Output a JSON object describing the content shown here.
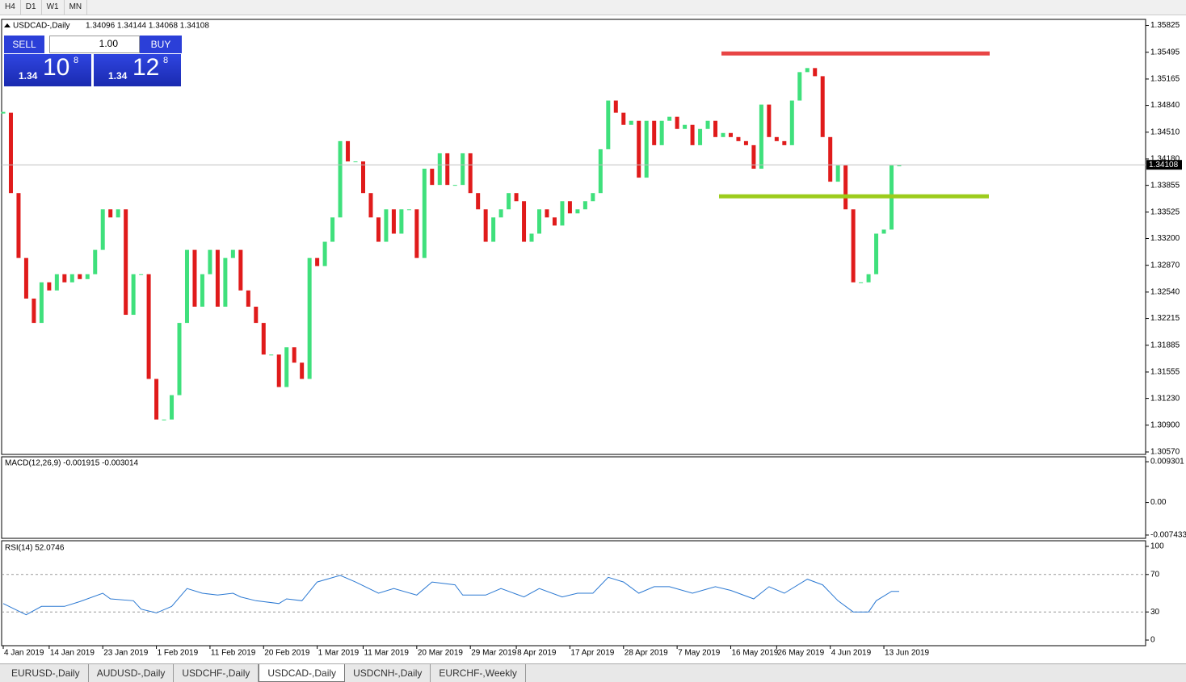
{
  "toolbar": {
    "timeframes": [
      "H4",
      "D1",
      "W1",
      "MN"
    ]
  },
  "trade_panel": {
    "sell": "SELL",
    "buy": "BUY",
    "lot": "1.00",
    "sell_price": {
      "big": "1.34",
      "pips": "10",
      "fraction": "8"
    },
    "buy_price": {
      "big": "1.34",
      "pips": "12",
      "fraction": "8"
    }
  },
  "chart_data": [
    {
      "type": "candlestick",
      "info": "USDCAD-,Daily",
      "ohlc_text": "1.34096 1.34144 1.34068 1.34108",
      "close": [
        1.3475,
        1.3376,
        1.3296,
        1.3246,
        1.3216,
        1.3266,
        1.3256,
        1.3276,
        1.3266,
        1.3276,
        1.327,
        1.3276,
        1.3306,
        1.3356,
        1.3346,
        1.3356,
        1.3226,
        1.3276,
        1.3276,
        1.3147,
        1.3097,
        1.3097,
        1.3127,
        1.3216,
        1.3306,
        1.3236,
        1.3276,
        1.3306,
        1.3236,
        1.3296,
        1.3306,
        1.3256,
        1.3236,
        1.3216,
        1.3177,
        1.3177,
        1.3137,
        1.3186,
        1.3167,
        1.3147,
        1.3296,
        1.3286,
        1.3316,
        1.3346,
        1.344,
        1.3415,
        1.3415,
        1.3376,
        1.3346,
        1.3316,
        1.3356,
        1.3326,
        1.3356,
        1.3356,
        1.3296,
        1.3406,
        1.3386,
        1.3425,
        1.3386,
        1.3386,
        1.3425,
        1.3376,
        1.3356,
        1.3316,
        1.3346,
        1.3356,
        1.3376,
        1.3366,
        1.3316,
        1.3326,
        1.3356,
        1.3346,
        1.3336,
        1.3366,
        1.3351,
        1.3356,
        1.3366,
        1.3376,
        1.343,
        1.349,
        1.3475,
        1.346,
        1.3465,
        1.3395,
        1.3465,
        1.3435,
        1.3465,
        1.347,
        1.3455,
        1.346,
        1.3435,
        1.3455,
        1.3465,
        1.3445,
        1.345,
        1.3445,
        1.344,
        1.3435,
        1.3406,
        1.3485,
        1.3445,
        1.344,
        1.3435,
        1.349,
        1.3525,
        1.353,
        1.352,
        1.3445,
        1.339,
        1.341,
        1.3356,
        1.3266,
        1.3266,
        1.3276,
        1.3326,
        1.3331,
        1.341,
        1.341
      ],
      "bull_color": "#3fe07c",
      "bear_color": "#e01b1b",
      "ylim": [
        1.3054,
        1.359
      ],
      "yticks": [
        {
          "value": 1.35825,
          "label": "1.35825"
        },
        {
          "value": 1.35495,
          "label": "1.35495"
        },
        {
          "value": 1.35165,
          "label": "1.35165"
        },
        {
          "value": 1.3484,
          "label": "1.34840"
        },
        {
          "value": 1.3451,
          "label": "1.34510"
        },
        {
          "value": 1.3418,
          "label": "1.34180"
        },
        {
          "value": 1.33855,
          "label": "1.33855"
        },
        {
          "value": 1.33525,
          "label": "1.33525"
        },
        {
          "value": 1.332,
          "label": "1.33200"
        },
        {
          "value": 1.3287,
          "label": "1.32870"
        },
        {
          "value": 1.3254,
          "label": "1.32540"
        },
        {
          "value": 1.32215,
          "label": "1.32215"
        },
        {
          "value": 1.31885,
          "label": "1.31885"
        },
        {
          "value": 1.31555,
          "label": "1.31555"
        },
        {
          "value": 1.3123,
          "label": "1.31230"
        },
        {
          "value": 1.309,
          "label": "1.30900"
        },
        {
          "value": 1.3057,
          "label": "1.30570"
        }
      ],
      "xticks": [
        {
          "value": 0,
          "label": "4 Jan 2019"
        },
        {
          "value": 6,
          "label": "14 Jan 2019"
        },
        {
          "value": 13,
          "label": "23 Jan 2019"
        },
        {
          "value": 20,
          "label": "1 Feb 2019"
        },
        {
          "value": 27,
          "label": "11 Feb 2019"
        },
        {
          "value": 34,
          "label": "20 Feb 2019"
        },
        {
          "value": 41,
          "label": "1 Mar 2019"
        },
        {
          "value": 47,
          "label": "11 Mar 2019"
        },
        {
          "value": 54,
          "label": "20 Mar 2019"
        },
        {
          "value": 61,
          "label": "29 Mar 2019"
        },
        {
          "value": 67,
          "label": "8 Apr 2019"
        },
        {
          "value": 74,
          "label": "17 Apr 2019"
        },
        {
          "value": 81,
          "label": "28 Apr 2019"
        },
        {
          "value": 88,
          "label": "7 May 2019"
        },
        {
          "value": 95,
          "label": "16 May 2019"
        },
        {
          "value": 101,
          "label": "26 May 2019"
        },
        {
          "value": 108,
          "label": "4 Jun 2019"
        },
        {
          "value": 115,
          "label": "13 Jun 2019"
        }
      ],
      "current_price": {
        "value": 1.34108,
        "label": "1.34108"
      },
      "levels": [
        {
          "value": 1.3548,
          "color": "#e84545"
        },
        {
          "value": 1.3372,
          "color": "#9ccc1c"
        }
      ]
    },
    {
      "type": "macd",
      "title": "MACD(12,26,9) -0.001915 -0.003014",
      "ylim": [
        -0.00818,
        0.01042
      ],
      "yticks": [
        {
          "value": 0.009301,
          "label": "0.009301"
        },
        {
          "value": 0,
          "label": "0.00"
        },
        {
          "value": -0.007433,
          "label": "-0.007433"
        }
      ]
    },
    {
      "type": "line",
      "title": "RSI(14) 52.0746",
      "color": "#2a78d2",
      "x": [
        0,
        3,
        5,
        8,
        10,
        13,
        14,
        17,
        18,
        20,
        22,
        24,
        26,
        28,
        30,
        31,
        33,
        36,
        37,
        39,
        41,
        44,
        46,
        49,
        51,
        54,
        56,
        59,
        60,
        63,
        65,
        68,
        70,
        73,
        75,
        77,
        79,
        81,
        83,
        85,
        87,
        90,
        93,
        95,
        98,
        100,
        102,
        105,
        107,
        109,
        111,
        113,
        114,
        116,
        117
      ],
      "values": [
        39,
        27,
        36,
        36,
        41,
        50,
        44,
        42,
        33,
        29,
        36,
        55,
        50,
        48,
        50,
        46,
        42,
        39,
        44,
        42,
        62,
        69,
        62,
        50,
        55,
        48,
        62,
        59,
        48,
        48,
        55,
        46,
        55,
        46,
        50,
        50,
        67,
        62,
        50,
        57,
        57,
        50,
        57,
        53,
        44,
        57,
        50,
        65,
        59,
        42,
        30,
        30,
        42,
        52,
        52
      ],
      "ylim": [
        -6,
        106
      ],
      "yticks": [
        100,
        70,
        30,
        0
      ],
      "levels": [
        70,
        30
      ]
    }
  ],
  "tabs": [
    "EURUSD-,Daily",
    "AUDUSD-,Daily",
    "USDCHF-,Daily",
    "USDCAD-,Daily",
    "USDCNH-,Daily",
    "EURCHF-,Weekly"
  ],
  "active_tab": 3
}
